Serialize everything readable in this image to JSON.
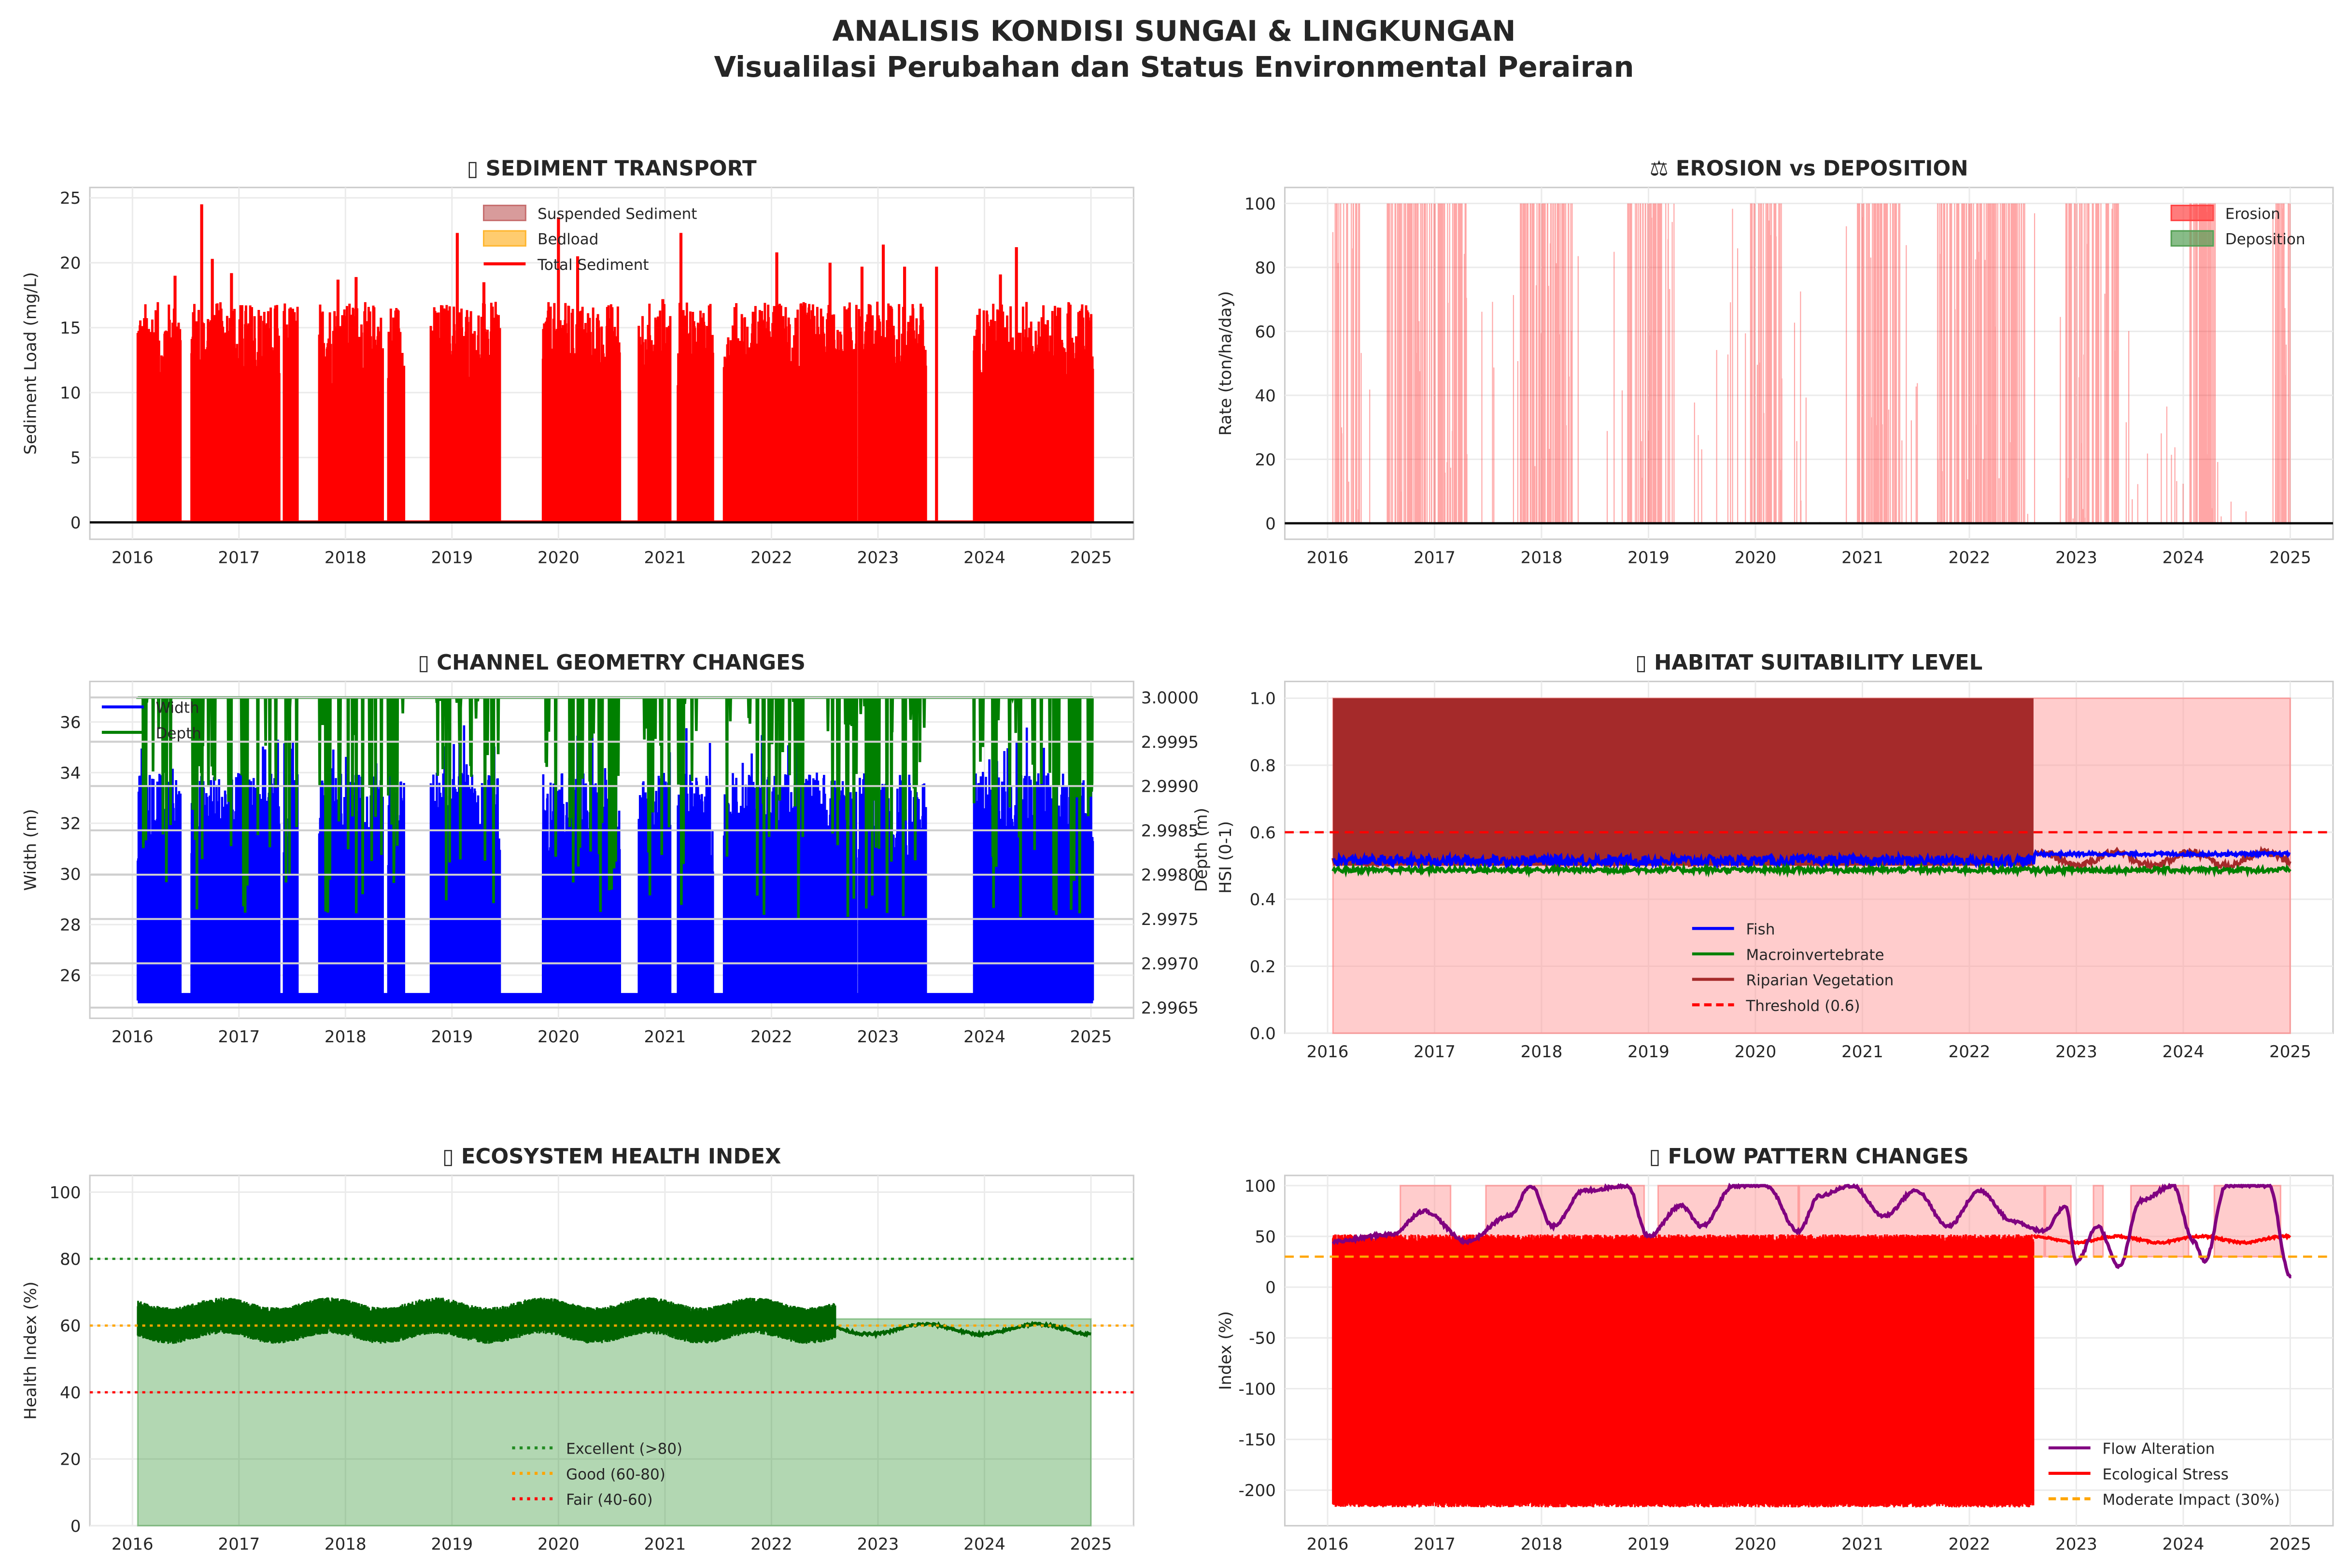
{
  "figure": {
    "title": "ANALISIS KONDISI SUNGAI & LINGKUNGAN",
    "subtitle": "Visualilasi Perubahan dan Status Environmental Perairan"
  },
  "chart_data": [
    {
      "type": "line",
      "title": "▯ SEDIMENT TRANSPORT",
      "xlabel": "",
      "ylabel": "Sediment Load (mg/L)",
      "xticks": [
        2016,
        2017,
        2018,
        2019,
        2020,
        2021,
        2022,
        2023,
        2024,
        2025
      ],
      "yticks": [
        0,
        5,
        10,
        15,
        20,
        25
      ],
      "ylim": [
        -1.3,
        25.8
      ],
      "xlim": [
        2015.6,
        2025.4
      ],
      "legend": [
        {
          "label": "Suspended Sediment",
          "color": "#c77070",
          "kind": "patch"
        },
        {
          "label": "Bedload",
          "color": "#ffb732",
          "kind": "patch"
        },
        {
          "label": "Total Sediment",
          "color": "#ff0000",
          "kind": "line"
        }
      ],
      "legend_position": "upper-center",
      "active_periods": [
        [
          2016.05,
          2016.45
        ],
        [
          2016.55,
          2017.38
        ],
        [
          2017.42,
          2017.55
        ],
        [
          2017.75,
          2018.35
        ],
        [
          2018.4,
          2018.55
        ],
        [
          2018.8,
          2019.45
        ],
        [
          2019.85,
          2020.58
        ],
        [
          2020.75,
          2021.05
        ],
        [
          2021.12,
          2021.45
        ],
        [
          2021.55,
          2022.8
        ],
        [
          2022.82,
          2023.45
        ],
        [
          2023.9,
          2025.02
        ]
      ],
      "typical_range": [
        10,
        17
      ],
      "peaks": [
        [
          2016.65,
          24.5
        ],
        [
          2016.75,
          20.3
        ],
        [
          2016.93,
          19.2
        ],
        [
          2016.4,
          19.0
        ],
        [
          2018.1,
          18.9
        ],
        [
          2017.93,
          18.7
        ],
        [
          2019.05,
          22.3
        ],
        [
          2019.3,
          18.5
        ],
        [
          2020.0,
          23.5
        ],
        [
          2020.18,
          20.5
        ],
        [
          2021.15,
          22.3
        ],
        [
          2020.98,
          17.2
        ],
        [
          2022.05,
          20.8
        ],
        [
          2022.55,
          20.0
        ],
        [
          2022.85,
          19.7
        ],
        [
          2023.05,
          21.4
        ],
        [
          2023.25,
          19.7
        ],
        [
          2023.55,
          19.7
        ],
        [
          2024.3,
          21.2
        ],
        [
          2024.15,
          19.1
        ],
        [
          2024.9,
          16.3
        ]
      ],
      "colors": {
        "total": "#ff0000",
        "zero_line": "#000000"
      }
    },
    {
      "type": "bar",
      "title": "⚖ EROSION vs DEPOSITION",
      "xlabel": "",
      "ylabel": "Rate (ton/ha/day)",
      "xticks": [
        2016,
        2017,
        2018,
        2019,
        2020,
        2021,
        2022,
        2023,
        2024,
        2025
      ],
      "yticks": [
        0,
        20,
        40,
        60,
        80,
        100
      ],
      "ylim": [
        -5,
        105
      ],
      "xlim": [
        2015.6,
        2025.4
      ],
      "legend": [
        {
          "label": "Erosion",
          "color": "#ff4444",
          "kind": "patch"
        },
        {
          "label": "Deposition",
          "color": "#55a055",
          "kind": "patch"
        }
      ],
      "legend_position": "upper-right",
      "erosion_periods": [
        [
          2016.05,
          2016.3
        ],
        [
          2016.55,
          2017.3
        ],
        [
          2017.8,
          2018.3
        ],
        [
          2018.8,
          2019.2
        ],
        [
          2019.95,
          2020.25
        ],
        [
          2020.95,
          2021.35
        ],
        [
          2021.7,
          2022.55
        ],
        [
          2022.9,
          2023.4
        ],
        [
          2024.05,
          2024.3
        ],
        [
          2024.85,
          2025.0
        ]
      ],
      "erosion_max": 100,
      "deposition_max": 0
    },
    {
      "type": "line",
      "title": "▯ CHANNEL GEOMETRY CHANGES",
      "xlabel": "",
      "ylabel": "Width (m)",
      "ylabel_right": "Depth (m)",
      "xticks": [
        2016,
        2017,
        2018,
        2019,
        2020,
        2021,
        2022,
        2023,
        2024,
        2025
      ],
      "yticks": [
        26,
        28,
        30,
        32,
        34,
        36
      ],
      "ylim": [
        24.3,
        37.6
      ],
      "yticks_right": [
        "2.9965",
        "2.9970",
        "2.9975",
        "2.9980",
        "2.9985",
        "2.9990",
        "2.9995",
        "3.0000"
      ],
      "ylim_right": [
        2.99638,
        3.00018
      ],
      "xlim": [
        2015.6,
        2025.4
      ],
      "legend": [
        {
          "label": "Width",
          "color": "#0000ff",
          "kind": "line"
        },
        {
          "label": "Depth",
          "color": "#008000",
          "kind": "line"
        }
      ],
      "legend_position": "upper-left",
      "width_base": 25.0,
      "width_typical": [
        30,
        34
      ],
      "depth_max": 3.0,
      "depth_min": 2.9965
    },
    {
      "type": "area",
      "title": "▯ HABITAT SUITABILITY LEVEL",
      "xlabel": "",
      "ylabel": "HSI (0-1)",
      "xticks": [
        2016,
        2017,
        2018,
        2019,
        2020,
        2021,
        2022,
        2023,
        2024,
        2025
      ],
      "yticks": [
        "0.0",
        "0.2",
        "0.4",
        "0.6",
        "0.8",
        "1.0"
      ],
      "ylim": [
        0,
        1.05
      ],
      "xlim": [
        2015.6,
        2025.4
      ],
      "legend": [
        {
          "label": "Fish",
          "color": "#0000ff",
          "kind": "line"
        },
        {
          "label": "Macroinvertebrate",
          "color": "#008000",
          "kind": "line"
        },
        {
          "label": "Riparian Vegetation",
          "color": "#a52a2a",
          "kind": "line"
        },
        {
          "label": "Threshold (0.6)",
          "color": "#ff0000",
          "kind": "dashed"
        }
      ],
      "legend_position": "lower-center",
      "threshold": 0.6,
      "dense_until": 2022.6,
      "fish_level": [
        0.5,
        0.54
      ],
      "macro_level": 0.48,
      "riparian_level": [
        0.5,
        0.52
      ]
    },
    {
      "type": "area",
      "title": "▯ ECOSYSTEM HEALTH INDEX",
      "xlabel": "",
      "ylabel": "Health Index (%)",
      "xticks": [
        2016,
        2017,
        2018,
        2019,
        2020,
        2021,
        2022,
        2023,
        2024,
        2025
      ],
      "yticks": [
        0,
        20,
        40,
        60,
        80,
        100
      ],
      "ylim": [
        0,
        105
      ],
      "xlim": [
        2015.6,
        2025.4
      ],
      "legend": [
        {
          "label": "Excellent (>80)",
          "color": "#228b22",
          "kind": "dotted"
        },
        {
          "label": "Good (60-80)",
          "color": "#ffa500",
          "kind": "dotted"
        },
        {
          "label": "Fair (40-60)",
          "color": "#ff0000",
          "kind": "dotted"
        }
      ],
      "legend_position": "lower-center",
      "thresholds": [
        80,
        60,
        40
      ],
      "band_before": [
        56,
        67
      ],
      "dense_until": 2022.6,
      "level_after": [
        57,
        60
      ]
    },
    {
      "type": "line",
      "title": "▯ FLOW PATTERN CHANGES",
      "xlabel": "",
      "ylabel": "Index (%)",
      "xticks": [
        2016,
        2017,
        2018,
        2019,
        2020,
        2021,
        2022,
        2023,
        2024,
        2025
      ],
      "yticks": [
        -200,
        -150,
        -100,
        -50,
        0,
        50,
        100
      ],
      "ylim": [
        -235,
        110
      ],
      "xlim": [
        2015.6,
        2025.4
      ],
      "legend": [
        {
          "label": "Flow Alteration",
          "color": "#800080",
          "kind": "line"
        },
        {
          "label": "Ecological Stress",
          "color": "#ff0000",
          "kind": "line"
        },
        {
          "label": "Moderate Impact (30%)",
          "color": "#ffa500",
          "kind": "dashed"
        }
      ],
      "legend_position": "lower-right",
      "moderate_impact": 30,
      "stress_band_before": [
        -215,
        50
      ],
      "dense_until": 2022.6,
      "stress_after": [
        42,
        50
      ],
      "flow_alteration": [
        [
          2016.05,
          45
        ],
        [
          2016.6,
          52
        ],
        [
          2016.9,
          75
        ],
        [
          2017.3,
          45
        ],
        [
          2017.7,
          70
        ],
        [
          2017.9,
          100
        ],
        [
          2018.1,
          60
        ],
        [
          2018.4,
          95
        ],
        [
          2018.8,
          100
        ],
        [
          2019.0,
          50
        ],
        [
          2019.3,
          80
        ],
        [
          2019.5,
          60
        ],
        [
          2019.8,
          100
        ],
        [
          2020.1,
          100
        ],
        [
          2020.4,
          55
        ],
        [
          2020.6,
          90
        ],
        [
          2020.9,
          100
        ],
        [
          2021.2,
          70
        ],
        [
          2021.5,
          95
        ],
        [
          2021.8,
          60
        ],
        [
          2022.1,
          95
        ],
        [
          2022.4,
          65
        ],
        [
          2022.7,
          55
        ],
        [
          2022.9,
          80
        ],
        [
          2023.0,
          25
        ],
        [
          2023.2,
          60
        ],
        [
          2023.4,
          20
        ],
        [
          2023.6,
          85
        ],
        [
          2023.9,
          100
        ],
        [
          2024.1,
          45
        ],
        [
          2024.2,
          25
        ],
        [
          2024.4,
          100
        ],
        [
          2024.8,
          100
        ],
        [
          2025.0,
          10
        ]
      ]
    }
  ]
}
